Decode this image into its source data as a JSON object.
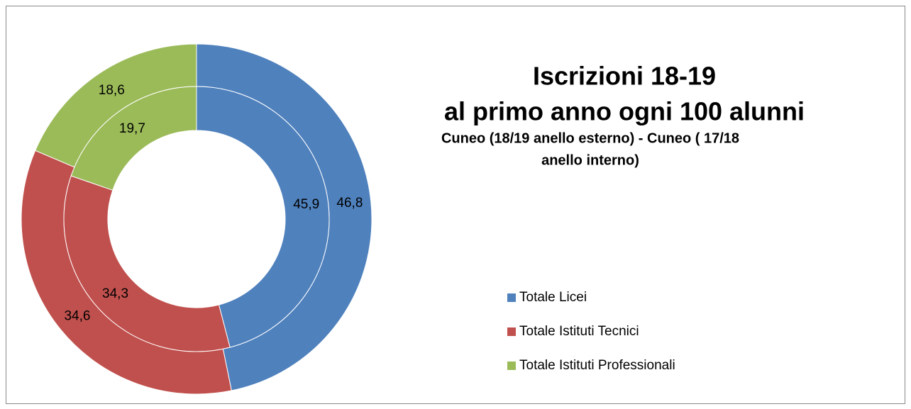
{
  "chart_data": {
    "type": "donut",
    "title": [
      "Iscrizioni 18-19",
      "al primo anno ogni 100 alunni"
    ],
    "subtitle": [
      "Cuneo (18/19 anello esterno)  - Cuneo ( 17/18",
      "anello interno)"
    ],
    "categories": [
      "Totale Licei",
      "Totale Istituti Tecnici",
      "Totale Istituti Professionali"
    ],
    "colors": [
      "#4f81bd",
      "#c0504d",
      "#9bbb59"
    ],
    "series": [
      {
        "values": [
          46.8,
          34.6,
          18.6
        ],
        "value_labels": [
          "46,8",
          "34,6",
          "18,6"
        ]
      },
      {
        "values": [
          45.9,
          34.3,
          19.7
        ],
        "value_labels": [
          "45,9",
          "34,3",
          "19,7"
        ]
      }
    ],
    "legend": "right"
  }
}
